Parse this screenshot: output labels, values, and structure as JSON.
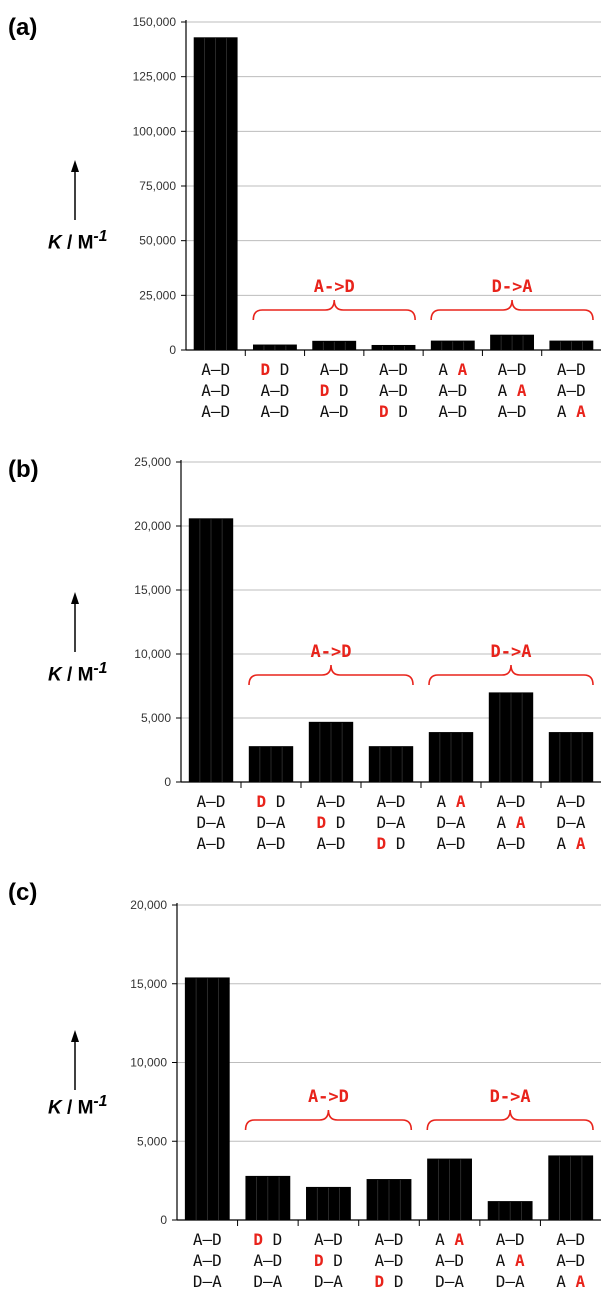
{
  "chart_data": [
    {
      "panel_label": "(a)",
      "type": "bar",
      "ylabel_symbol": "K",
      "ylabel_rest": " / M",
      "ylabel_sup": "-1",
      "ylim": [
        0,
        150000
      ],
      "yticks": [
        "0",
        "25,000",
        "50,000",
        "75,000",
        "100,000",
        "125,000",
        "150,000"
      ],
      "grid": true,
      "categories": [
        [
          "A–D",
          "A–D",
          "A–D"
        ],
        [
          "D  D",
          "A–D",
          "A–D"
        ],
        [
          "A–D",
          "D  D",
          "A–D"
        ],
        [
          "A–D",
          "A–D",
          "D  D"
        ],
        [
          "A  A",
          "A–D",
          "A–D"
        ],
        [
          "A–D",
          "A  A",
          "A–D"
        ],
        [
          "A–D",
          "A–D",
          "A  A"
        ]
      ],
      "values": [
        143000,
        2500,
        4200,
        2300,
        4300,
        7000,
        4300
      ],
      "groups": [
        {
          "label": "A->D",
          "from": 1,
          "to": 3
        },
        {
          "label": "D->A",
          "from": 4,
          "to": 6
        }
      ]
    },
    {
      "panel_label": "(b)",
      "type": "bar",
      "ylabel_symbol": "K",
      "ylabel_rest": " / M",
      "ylabel_sup": "-1",
      "ylim": [
        0,
        25000
      ],
      "yticks": [
        "0",
        "5,000",
        "10,000",
        "15,000",
        "20,000",
        "25,000"
      ],
      "grid": true,
      "categories": [
        [
          "A–D",
          "D–A",
          "A–D"
        ],
        [
          "D  D",
          "D–A",
          "A–D"
        ],
        [
          "A–D",
          "D  D",
          "A–D"
        ],
        [
          "A–D",
          "D–A",
          "D  D"
        ],
        [
          "A  A",
          "D–A",
          "A–D"
        ],
        [
          "A–D",
          "A  A",
          "A–D"
        ],
        [
          "A–D",
          "D–A",
          "A  A"
        ]
      ],
      "values": [
        20600,
        2800,
        4700,
        2800,
        3900,
        7000,
        3900
      ],
      "groups": [
        {
          "label": "A->D",
          "from": 1,
          "to": 3
        },
        {
          "label": "D->A",
          "from": 4,
          "to": 6
        }
      ]
    },
    {
      "panel_label": "(c)",
      "type": "bar",
      "ylabel_symbol": "K",
      "ylabel_rest": " / M",
      "ylabel_sup": "-1",
      "ylim": [
        0,
        20000
      ],
      "yticks": [
        "0",
        "5,000",
        "10,000",
        "15,000",
        "20,000"
      ],
      "grid": true,
      "categories": [
        [
          "A–D",
          "A–D",
          "D–A"
        ],
        [
          "D  D",
          "A–D",
          "D–A"
        ],
        [
          "A–D",
          "D  D",
          "D–A"
        ],
        [
          "A–D",
          "A–D",
          "D  D"
        ],
        [
          "A  A",
          "A–D",
          "D–A"
        ],
        [
          "A–D",
          "A  A",
          "D–A"
        ],
        [
          "A–D",
          "A–D",
          "A  A"
        ]
      ],
      "values": [
        15400,
        2800,
        2100,
        2600,
        3900,
        1200,
        4100
      ],
      "groups": [
        {
          "label": "A->D",
          "from": 1,
          "to": 3
        },
        {
          "label": "D->A",
          "from": 4,
          "to": 6
        }
      ]
    }
  ],
  "colors": {
    "bar": "#000000",
    "highlight": "#e8231b",
    "grid": "#bdbdbd"
  }
}
